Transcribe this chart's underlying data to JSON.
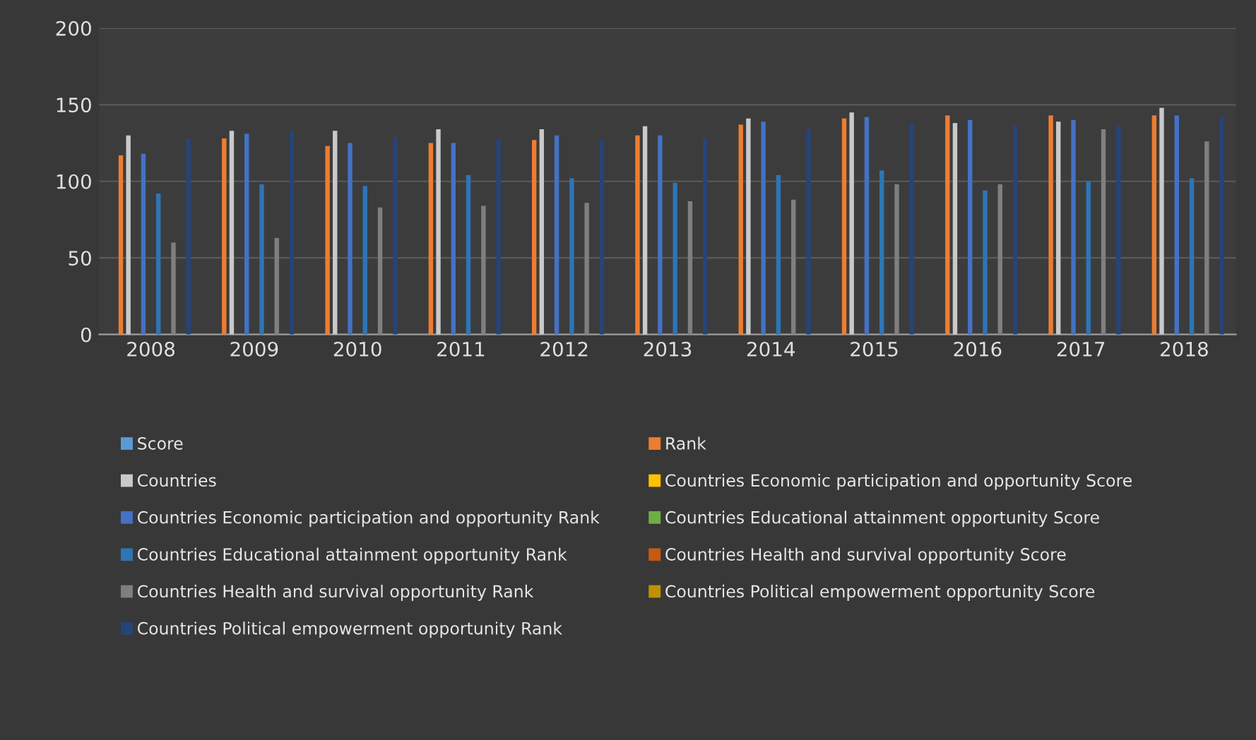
{
  "chart_data": {
    "type": "bar",
    "categories": [
      "2008",
      "2009",
      "2010",
      "2011",
      "2012",
      "2013",
      "2014",
      "2015",
      "2016",
      "2017",
      "2018"
    ],
    "ylim": [
      0,
      200
    ],
    "yticks": [
      0,
      50,
      100,
      150,
      200
    ],
    "grid": "y",
    "legend": "bottom",
    "series": [
      {
        "name": "Score",
        "color": "#5b9bd5",
        "values": [
          null,
          null,
          null,
          null,
          null,
          null,
          null,
          null,
          null,
          null,
          null
        ]
      },
      {
        "name": "Rank",
        "color": "#ed7d31",
        "values": [
          117,
          128,
          123,
          125,
          127,
          130,
          137,
          141,
          143,
          143,
          143
        ]
      },
      {
        "name": "Countries",
        "color": "#c9c9c9",
        "values": [
          130,
          133,
          133,
          134,
          134,
          136,
          141,
          145,
          138,
          139,
          148
        ]
      },
      {
        "name": "Countries Economic participation and opportunity Score",
        "color": "#ffc000",
        "values": [
          null,
          null,
          null,
          null,
          null,
          null,
          null,
          null,
          null,
          null,
          null
        ]
      },
      {
        "name": "Countries Economic participation and opportunity Rank",
        "color": "#4472c4",
        "values": [
          118,
          131,
          125,
          125,
          130,
          130,
          139,
          142,
          140,
          140,
          143
        ]
      },
      {
        "name": "Countries Educational attainment opportunity Score",
        "color": "#70ad47",
        "values": [
          null,
          null,
          null,
          null,
          null,
          null,
          null,
          null,
          null,
          null,
          null
        ]
      },
      {
        "name": "Countries Educational attainment opportunity Rank",
        "color": "#2e75b6",
        "values": [
          92,
          98,
          97,
          104,
          102,
          99,
          104,
          107,
          94,
          100,
          102
        ]
      },
      {
        "name": "Countries Health and survival opportunity Score",
        "color": "#c55a11",
        "values": [
          null,
          null,
          null,
          null,
          null,
          null,
          null,
          null,
          null,
          null,
          null
        ]
      },
      {
        "name": "Countries Health and survival opportunity Rank",
        "color": "#7f7f7f",
        "values": [
          60,
          63,
          83,
          84,
          86,
          87,
          88,
          98,
          98,
          134,
          126
        ]
      },
      {
        "name": "Countries Political empowerment opportunity Score",
        "color": "#bf9000",
        "values": [
          null,
          null,
          null,
          null,
          null,
          null,
          null,
          null,
          null,
          null,
          null
        ]
      },
      {
        "name": "Countries Political empowerment opportunity Rank",
        "color": "#264478",
        "values": [
          128,
          133,
          129,
          128,
          127,
          128,
          134,
          138,
          136,
          136,
          142
        ]
      }
    ]
  }
}
